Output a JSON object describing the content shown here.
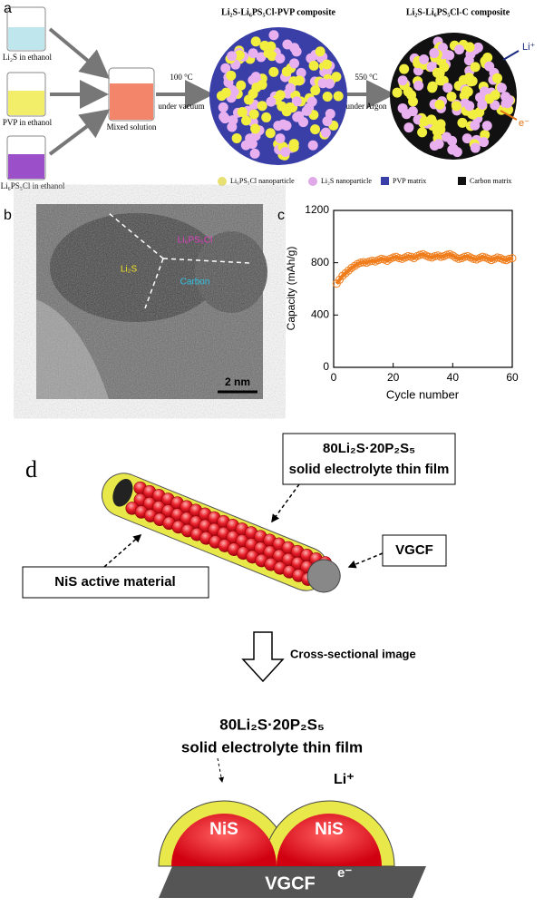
{
  "panel_a": {
    "label": "a",
    "beakers": [
      "Li₂S in ethanol",
      "PVP in ethanol",
      "Li₆PS₅Cl in ethanol"
    ],
    "mixed": "Mixed solution",
    "step1": [
      "100 °C",
      "under vacuum"
    ],
    "step2": [
      "550 °C",
      "under Argon"
    ],
    "composite1": "Li₂S-Li₆PS₅Cl-PVP composite",
    "composite2": "Li₂S-Li₆PS₅Cl-C composite",
    "li_ion": "Li⁺",
    "electron": "e⁻",
    "legend": [
      "Li₆PS₅Cl nanoparticle",
      "Li₂S nanoparticle",
      "PVP matrix",
      "Carbon matrix"
    ]
  },
  "panel_b": {
    "label": "b",
    "regions": [
      "Li₆PS₅Cl",
      "Li₂S",
      "Carbon"
    ],
    "scale_bar": "2 nm"
  },
  "chart_data": {
    "type": "scatter",
    "label": "c",
    "x_label": "Cycle number",
    "y_label": "Capacity (mAh/g)",
    "xlim": [
      0,
      60
    ],
    "xticks": [
      0,
      20,
      40,
      60
    ],
    "ylim": [
      0,
      1200
    ],
    "yticks": [
      0,
      400,
      800,
      1200
    ],
    "x": [
      1,
      2,
      3,
      4,
      5,
      6,
      7,
      8,
      9,
      10,
      11,
      12,
      13,
      14,
      15,
      16,
      17,
      18,
      19,
      20,
      21,
      22,
      23,
      24,
      25,
      26,
      27,
      28,
      29,
      30,
      31,
      32,
      33,
      34,
      35,
      36,
      37,
      38,
      39,
      40,
      41,
      42,
      43,
      44,
      45,
      46,
      47,
      48,
      49,
      50,
      51,
      52,
      53,
      54,
      55,
      56,
      57,
      58,
      59,
      60
    ],
    "series": [
      {
        "color": "#f07d1c",
        "values": [
          640,
          670,
          700,
          720,
          740,
          760,
          775,
          790,
          800,
          805,
          800,
          810,
          815,
          810,
          820,
          830,
          825,
          815,
          830,
          840,
          845,
          835,
          830,
          840,
          850,
          845,
          835,
          850,
          860,
          865,
          855,
          845,
          840,
          850,
          855,
          845,
          850,
          860,
          865,
          855,
          840,
          830,
          835,
          845,
          850,
          840,
          830,
          825,
          835,
          845,
          840,
          830,
          820,
          830,
          840,
          835,
          825,
          820,
          830,
          835
        ]
      }
    ]
  },
  "panel_d": {
    "label": "d",
    "film_top": [
      "80Li₂S·20P₂S₅",
      "solid electrolyte thin film"
    ],
    "vgcf_callout": "VGCF",
    "nis_callout": "NiS active material",
    "arrow_label": "Cross-sectional image",
    "film_bottom": [
      "80Li₂S·20P₂S₅",
      "solid electrolyte thin film"
    ],
    "li_ion": "Li⁺",
    "nis": [
      "NiS",
      "NiS"
    ],
    "vgcf": "VGCF",
    "electron": "e⁻"
  }
}
